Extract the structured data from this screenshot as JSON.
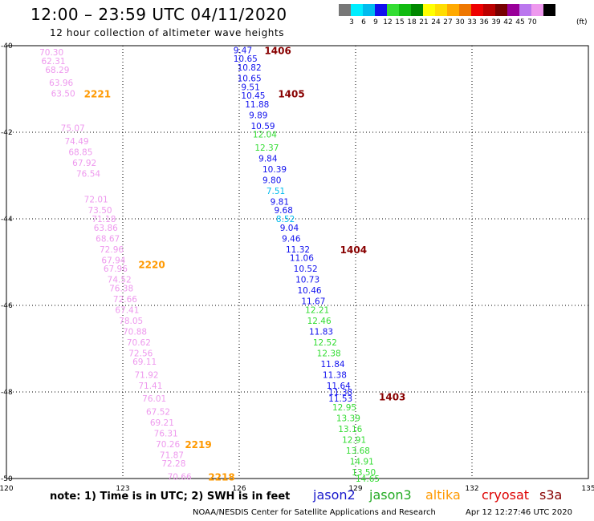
{
  "title": "12:00 – 23:59 UTC 04/11/2020",
  "subtitle": "12 hour collection of altimeter wave heights",
  "legend": {
    "colors": [
      "#777777",
      "#00eeff",
      "#00bbee",
      "#1111ee",
      "#33dd33",
      "#11bb11",
      "#008800",
      "#ffff00",
      "#ffdd00",
      "#ffaa00",
      "#ee7700",
      "#ee0000",
      "#bb0000",
      "#770000",
      "#990099",
      "#bb77ee",
      "#ee99ee",
      "#000000"
    ],
    "labels": [
      "3",
      "6",
      "9",
      "12",
      "15",
      "18",
      "21",
      "24",
      "27",
      "30",
      "33",
      "36",
      "39",
      "42",
      "45",
      "70"
    ],
    "unit": "(ft)"
  },
  "note": "note:  1) Time is in UTC;  2) SWH is in feet",
  "satellites": [
    {
      "name": "jason2",
      "color": "#1a1acc"
    },
    {
      "name": "jason3",
      "color": "#22aa22"
    },
    {
      "name": "altika",
      "color": "#ff9900"
    },
    {
      "name": "cryosat",
      "color": "#dd0000"
    },
    {
      "name": "s3a",
      "color": "#880000"
    }
  ],
  "footer": "NOAA/NESDIS Center for Satellite Applications and Research",
  "timestamp": "Apr 12 12:27:46 UTC 2020",
  "chart_data": {
    "type": "scatter",
    "xlim": [
      120,
      135
    ],
    "ylim": [
      -50,
      -40
    ],
    "xticks": [
      {
        "v": 120,
        "label": "120"
      },
      {
        "v": 123,
        "label": "123"
      },
      {
        "v": 126,
        "label": "126"
      },
      {
        "v": 129,
        "label": "129"
      },
      {
        "v": 132,
        "label": "132"
      },
      {
        "v": 135,
        "label": "135"
      }
    ],
    "yticks": [
      {
        "v": -40,
        "label": "-40"
      },
      {
        "v": -42,
        "label": "-42"
      },
      {
        "v": -44,
        "label": "-44"
      },
      {
        "v": -46,
        "label": "-46"
      },
      {
        "v": -48,
        "label": "-48"
      },
      {
        "v": -50,
        "label": "-50"
      }
    ],
    "grid": true,
    "times": [
      {
        "label": "2221",
        "lon": 122.0,
        "lat": -41.1,
        "color": "#ff9900"
      },
      {
        "label": "2220",
        "lon": 123.4,
        "lat": -45.05,
        "color": "#ff9900"
      },
      {
        "label": "2219",
        "lon": 124.6,
        "lat": -49.2,
        "color": "#ff9900"
      },
      {
        "label": "2218",
        "lon": 125.2,
        "lat": -49.95,
        "color": "#ff9900"
      },
      {
        "label": "1406",
        "lon": 126.65,
        "lat": -40.1,
        "color": "#880000"
      },
      {
        "label": "1405",
        "lon": 127.0,
        "lat": -41.1,
        "color": "#880000"
      },
      {
        "label": "1404",
        "lon": 128.6,
        "lat": -44.7,
        "color": "#880000"
      },
      {
        "label": "1403",
        "lon": 129.6,
        "lat": -48.1,
        "color": "#880000"
      }
    ],
    "series": [
      {
        "name": "altika",
        "color": "#ee99ee",
        "points": [
          {
            "lon": 120.85,
            "lat": -40.15,
            "v": "70.30"
          },
          {
            "lon": 120.9,
            "lat": -40.35,
            "v": "62.31"
          },
          {
            "lon": 121.0,
            "lat": -40.56,
            "v": "68.29"
          },
          {
            "lon": 121.1,
            "lat": -40.85,
            "v": "63.96"
          },
          {
            "lon": 121.15,
            "lat": -41.1,
            "v": "63.50"
          },
          {
            "lon": 121.4,
            "lat": -41.9,
            "v": "75.07"
          },
          {
            "lon": 121.5,
            "lat": -42.2,
            "v": "74.49"
          },
          {
            "lon": 121.6,
            "lat": -42.45,
            "v": "68.85"
          },
          {
            "lon": 121.7,
            "lat": -42.7,
            "v": "67.92"
          },
          {
            "lon": 121.8,
            "lat": -42.95,
            "v": "76.54"
          },
          {
            "lon": 122.0,
            "lat": -43.55,
            "v": "72.01"
          },
          {
            "lon": 122.1,
            "lat": -43.8,
            "v": "73.50"
          },
          {
            "lon": 122.2,
            "lat": -44.0,
            "v": "71.18"
          },
          {
            "lon": 122.25,
            "lat": -44.2,
            "v": "63.86"
          },
          {
            "lon": 122.3,
            "lat": -44.45,
            "v": "68.67"
          },
          {
            "lon": 122.4,
            "lat": -44.7,
            "v": "72.96"
          },
          {
            "lon": 122.45,
            "lat": -44.95,
            "v": "67.94"
          },
          {
            "lon": 122.5,
            "lat": -45.15,
            "v": "67.96"
          },
          {
            "lon": 122.6,
            "lat": -45.4,
            "v": "74.52"
          },
          {
            "lon": 122.65,
            "lat": -45.6,
            "v": "76.38"
          },
          {
            "lon": 122.75,
            "lat": -45.85,
            "v": "72.66"
          },
          {
            "lon": 122.8,
            "lat": -46.1,
            "v": "67.41"
          },
          {
            "lon": 122.9,
            "lat": -46.35,
            "v": "78.05"
          },
          {
            "lon": 123.0,
            "lat": -46.6,
            "v": "70.88"
          },
          {
            "lon": 123.1,
            "lat": -46.85,
            "v": "70.62"
          },
          {
            "lon": 123.15,
            "lat": -47.1,
            "v": "72.56"
          },
          {
            "lon": 123.25,
            "lat": -47.3,
            "v": "69.11"
          },
          {
            "lon": 123.3,
            "lat": -47.6,
            "v": "71.92"
          },
          {
            "lon": 123.4,
            "lat": -47.85,
            "v": "71.41"
          },
          {
            "lon": 123.5,
            "lat": -48.15,
            "v": "76.01"
          },
          {
            "lon": 123.6,
            "lat": -48.45,
            "v": "67.52"
          },
          {
            "lon": 123.7,
            "lat": -48.7,
            "v": "69.21"
          },
          {
            "lon": 123.8,
            "lat": -48.95,
            "v": "76.31"
          },
          {
            "lon": 123.85,
            "lat": -49.2,
            "v": "70.26"
          },
          {
            "lon": 123.95,
            "lat": -49.45,
            "v": "71.87"
          },
          {
            "lon": 124.0,
            "lat": -49.65,
            "v": "72.28"
          },
          {
            "lon": 124.15,
            "lat": -49.95,
            "v": "70.66"
          }
        ]
      },
      {
        "name": "jason2/jason3",
        "color": "mixed",
        "points": [
          {
            "lon": 125.85,
            "lat": -40.1,
            "v": "9.47",
            "c": "#1111ee"
          },
          {
            "lon": 125.85,
            "lat": -40.3,
            "v": "10.65",
            "c": "#1111ee"
          },
          {
            "lon": 125.95,
            "lat": -40.5,
            "v": "10.82",
            "c": "#1111ee"
          },
          {
            "lon": 125.95,
            "lat": -40.75,
            "v": "10.65",
            "c": "#1111ee"
          },
          {
            "lon": 126.05,
            "lat": -40.95,
            "v": "9.51",
            "c": "#1111ee"
          },
          {
            "lon": 126.05,
            "lat": -41.15,
            "v": "10.45",
            "c": "#1111ee"
          },
          {
            "lon": 126.15,
            "lat": -41.35,
            "v": "11.88",
            "c": "#1111ee"
          },
          {
            "lon": 126.25,
            "lat": -41.6,
            "v": "9.89",
            "c": "#1111ee"
          },
          {
            "lon": 126.3,
            "lat": -41.85,
            "v": "10.59",
            "c": "#1111ee"
          },
          {
            "lon": 126.35,
            "lat": -42.05,
            "v": "12.04",
            "c": "#33dd33"
          },
          {
            "lon": 126.4,
            "lat": -42.35,
            "v": "12.37",
            "c": "#33dd33"
          },
          {
            "lon": 126.5,
            "lat": -42.6,
            "v": "9.84",
            "c": "#1111ee"
          },
          {
            "lon": 126.6,
            "lat": -42.85,
            "v": "10.39",
            "c": "#1111ee"
          },
          {
            "lon": 126.6,
            "lat": -43.1,
            "v": "9.80",
            "c": "#1111ee"
          },
          {
            "lon": 126.7,
            "lat": -43.35,
            "v": "7.51",
            "c": "#00bbee"
          },
          {
            "lon": 126.8,
            "lat": -43.6,
            "v": "9.81",
            "c": "#1111ee"
          },
          {
            "lon": 126.9,
            "lat": -43.8,
            "v": "9.68",
            "c": "#1111ee"
          },
          {
            "lon": 126.95,
            "lat": -44.0,
            "v": "8.52",
            "c": "#00bbee"
          },
          {
            "lon": 127.05,
            "lat": -44.2,
            "v": "9.04",
            "c": "#1111ee"
          },
          {
            "lon": 127.1,
            "lat": -44.45,
            "v": "9.46",
            "c": "#1111ee"
          },
          {
            "lon": 127.2,
            "lat": -44.7,
            "v": "11.32",
            "c": "#1111ee"
          },
          {
            "lon": 127.3,
            "lat": -44.9,
            "v": "11.06",
            "c": "#1111ee"
          },
          {
            "lon": 127.4,
            "lat": -45.15,
            "v": "10.52",
            "c": "#1111ee"
          },
          {
            "lon": 127.45,
            "lat": -45.4,
            "v": "10.73",
            "c": "#1111ee"
          },
          {
            "lon": 127.5,
            "lat": -45.65,
            "v": "10.46",
            "c": "#1111ee"
          },
          {
            "lon": 127.6,
            "lat": -45.9,
            "v": "11.67",
            "c": "#1111ee"
          },
          {
            "lon": 127.7,
            "lat": -46.1,
            "v": "12.21",
            "c": "#33dd33"
          },
          {
            "lon": 127.75,
            "lat": -46.35,
            "v": "12.46",
            "c": "#33dd33"
          },
          {
            "lon": 127.8,
            "lat": -46.6,
            "v": "11.83",
            "c": "#1111ee"
          },
          {
            "lon": 127.9,
            "lat": -46.85,
            "v": "12.52",
            "c": "#33dd33"
          },
          {
            "lon": 128.0,
            "lat": -47.1,
            "v": "12.38",
            "c": "#33dd33"
          },
          {
            "lon": 128.1,
            "lat": -47.35,
            "v": "11.84",
            "c": "#1111ee"
          },
          {
            "lon": 128.15,
            "lat": -47.6,
            "v": "11.38",
            "c": "#1111ee"
          },
          {
            "lon": 128.25,
            "lat": -47.85,
            "v": "11.64",
            "c": "#1111ee"
          },
          {
            "lon": 128.3,
            "lat": -48.0,
            "v": "11.38",
            "c": "#1111ee"
          },
          {
            "lon": 128.3,
            "lat": -48.15,
            "v": "11.53",
            "c": "#1111ee"
          },
          {
            "lon": 128.4,
            "lat": -48.35,
            "v": "12.95",
            "c": "#33dd33"
          },
          {
            "lon": 128.5,
            "lat": -48.6,
            "v": "13.39",
            "c": "#33dd33"
          },
          {
            "lon": 128.55,
            "lat": -48.85,
            "v": "13.16",
            "c": "#33dd33"
          },
          {
            "lon": 128.65,
            "lat": -49.1,
            "v": "12.91",
            "c": "#33dd33"
          },
          {
            "lon": 128.75,
            "lat": -49.35,
            "v": "13.68",
            "c": "#33dd33"
          },
          {
            "lon": 128.85,
            "lat": -49.6,
            "v": "14.91",
            "c": "#33dd33"
          },
          {
            "lon": 128.9,
            "lat": -49.85,
            "v": "13.50",
            "c": "#33dd33"
          },
          {
            "lon": 129.0,
            "lat": -50.0,
            "v": "14.65",
            "c": "#33dd33"
          }
        ]
      }
    ]
  }
}
